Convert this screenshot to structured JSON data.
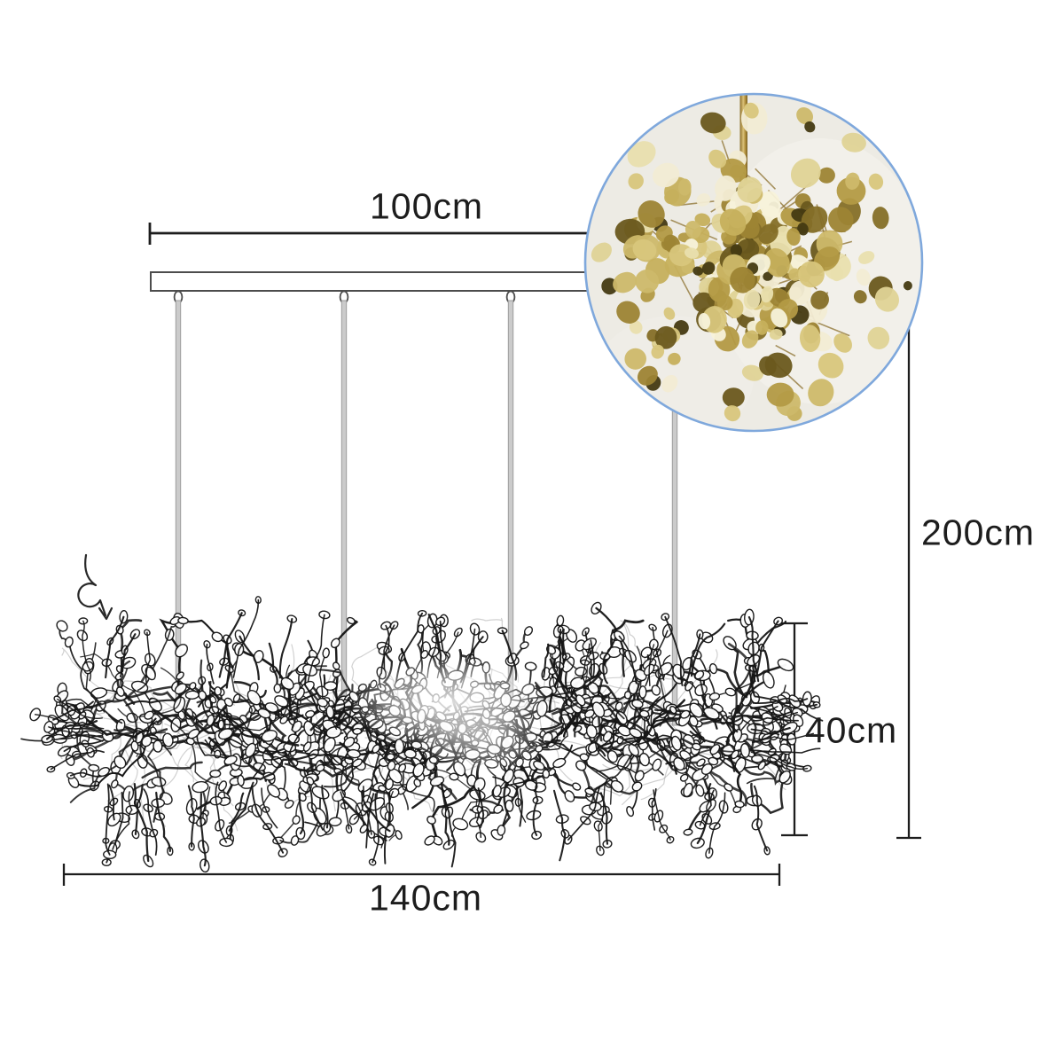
{
  "title": "chandelier-dimension-diagram",
  "labels": {
    "canopy_width": "100cm",
    "drop_height": "200cm",
    "body_height": "40cm",
    "body_width": "140cm"
  },
  "colors": {
    "background": "#ffffff",
    "dimension_line": "#1d1d1d",
    "label_text": "#1d1d1d",
    "canopy_stroke": "#4c4c4c",
    "canopy_fill": "#ffffff",
    "rod_fill": "#cbcbcb",
    "rod_stroke": "#9d9d9d",
    "wire": "#161616",
    "wire_faded": "#9a9a9a",
    "leaf_fill": "#ffffff",
    "inset_border": "#7fa8dc",
    "inset_background": "#edebe4",
    "gold_stem": "#8d7230",
    "gold_rod_light": "#dcc27a",
    "gold_rod_dark": "#8a6d28",
    "gold_palette": [
      "#e9dfae",
      "#d8c67c",
      "#c6b05c",
      "#b39a45",
      "#9d8434",
      "#856f28",
      "#6a581e",
      "#f2ecd4",
      "#cdb96a",
      "#dfd396"
    ],
    "gold_dark": "#453a12",
    "gold_bright": "#f7f2da"
  },
  "icons": {
    "callout_arrow": "curved-arrow-with-loop-icon"
  },
  "art": {
    "seed": 1337,
    "tangle_branches": 270,
    "tangle_gray_branches": 70,
    "tangle_sprigs": 110,
    "inset_leaves": 235,
    "inset_stems": 70
  }
}
